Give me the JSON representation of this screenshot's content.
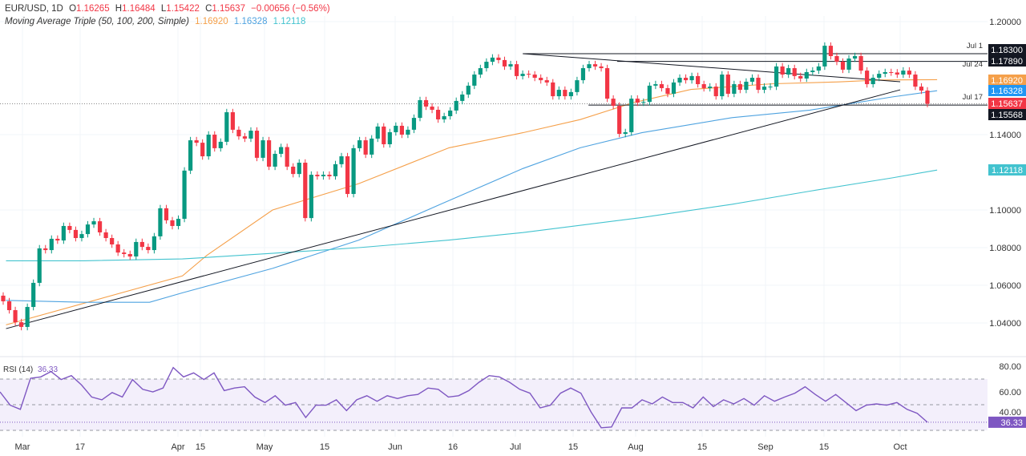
{
  "header": {
    "symbol": "EUR/USD, 1D",
    "open_label": "O",
    "open": "1.16265",
    "high_label": "H",
    "high": "1.16484",
    "low_label": "L",
    "low": "1.15422",
    "close_label": "C",
    "close": "1.15637",
    "change": "−0.00656 (−0.56%)",
    "ma_title": "Moving Average Triple (50, 100, 200, Simple)",
    "ma50": "1.16920",
    "ma100": "1.16328",
    "ma200": "1.12118"
  },
  "rsi": {
    "title": "RSI (14)",
    "value": "36.33"
  },
  "colors": {
    "up": "#089981",
    "down": "#f23645",
    "ma50": "#f5a04a",
    "ma100": "#4fa3e0",
    "ma200": "#43c3cf",
    "rsi": "#7e57c2",
    "rsi_band": "#f3effb",
    "level": "#131722"
  },
  "chart_data": [
    {
      "type": "candlestick",
      "title": "EUR/USD, 1D",
      "y_ticks": [
        "1.20000",
        "1.14000",
        "1.10000",
        "1.08000",
        "1.06000",
        "1.04000"
      ],
      "x_ticks": [
        "Mar",
        "17",
        "Apr",
        "15",
        "May",
        "15",
        "Jun",
        "16",
        "Jul",
        "15",
        "Aug",
        "15",
        "Sep",
        "15",
        "Oct"
      ],
      "ylim": [
        1.03,
        1.205
      ],
      "closes": [
        1.0515,
        1.0468,
        1.0404,
        1.0379,
        1.0485,
        1.0613,
        1.0796,
        1.0787,
        1.0847,
        1.0838,
        1.0915,
        1.0894,
        1.0851,
        1.0872,
        1.0923,
        1.094,
        1.0881,
        1.0851,
        1.0817,
        1.0774,
        1.0766,
        1.0753,
        1.083,
        1.0804,
        1.0787,
        1.086,
        1.1009,
        1.0945,
        1.0915,
        1.0953,
        1.1209,
        1.137,
        1.1357,
        1.1285,
        1.14,
        1.1328,
        1.1362,
        1.1519,
        1.1426,
        1.1391,
        1.1379,
        1.1421,
        1.1277,
        1.137,
        1.123,
        1.1298,
        1.1334,
        1.123,
        1.1191,
        1.1251,
        1.0957,
        1.1187,
        1.1179,
        1.1187,
        1.1179,
        1.1243,
        1.1285,
        1.1085,
        1.1328,
        1.137,
        1.1294,
        1.1379,
        1.1443,
        1.1349,
        1.1413,
        1.1447,
        1.14,
        1.1426,
        1.1489,
        1.1583,
        1.1549,
        1.1532,
        1.1481,
        1.1498,
        1.1528,
        1.1579,
        1.1613,
        1.166,
        1.1719,
        1.1753,
        1.1787,
        1.1809,
        1.1796,
        1.1762,
        1.1774,
        1.1711,
        1.1723,
        1.1719,
        1.1702,
        1.1689,
        1.1677,
        1.1604,
        1.1638,
        1.1604,
        1.1626,
        1.1689,
        1.1753,
        1.1774,
        1.1762,
        1.1753,
        1.1591,
        1.1553,
        1.1404,
        1.1413,
        1.1591,
        1.157,
        1.1574,
        1.166,
        1.1668,
        1.1647,
        1.1617,
        1.1677,
        1.1702,
        1.1689,
        1.1711,
        1.1668,
        1.1647,
        1.1655,
        1.1604,
        1.1719,
        1.1617,
        1.1668,
        1.1638,
        1.1681,
        1.1702,
        1.1638,
        1.1655,
        1.1655,
        1.1762,
        1.1719,
        1.1753,
        1.1711,
        1.1698,
        1.1732,
        1.174,
        1.1762,
        1.1872,
        1.1817,
        1.1787,
        1.1745,
        1.1804,
        1.1817,
        1.174,
        1.1668,
        1.1702,
        1.1723,
        1.1732,
        1.173,
        1.1719,
        1.174,
        1.1719,
        1.1655,
        1.1634,
        1.15637
      ],
      "moving_averages": [
        {
          "name": "MA 50",
          "last": "1.16920",
          "points": [
            [
              "Feb 25",
              1.039
            ],
            [
              "Apr 9",
              1.065
            ],
            [
              "Apr 15",
              1.076
            ],
            [
              "May 1",
              1.1
            ],
            [
              "May 22",
              1.114
            ],
            [
              "Jun 13",
              1.133
            ],
            [
              "Jul 1",
              1.141
            ],
            [
              "Jul 15",
              1.148
            ],
            [
              "Jul 28",
              1.157
            ],
            [
              "Aug 11",
              1.164
            ],
            [
              "Aug 31",
              1.167
            ],
            [
              "Sep 16",
              1.168
            ],
            [
              "Sep 26",
              1.169
            ],
            [
              "Oct 10",
              1.1692
            ]
          ]
        },
        {
          "name": "MA 100",
          "last": "1.16328",
          "points": [
            [
              "Feb 25",
              1.052
            ],
            [
              "Mar 16",
              1.051
            ],
            [
              "Apr 1",
              1.051
            ],
            [
              "Apr 9",
              1.056
            ],
            [
              "May 1",
              1.069
            ],
            [
              "May 22",
              1.084
            ],
            [
              "Jun 13",
              1.105
            ],
            [
              "Jul 1",
              1.122
            ],
            [
              "Jul 15",
              1.133
            ],
            [
              "Jul 30",
              1.141
            ],
            [
              "Aug 21",
              1.149
            ],
            [
              "Sep 9",
              1.153
            ],
            [
              "Sep 29",
              1.16
            ],
            [
              "Oct 10",
              1.1633
            ]
          ]
        },
        {
          "name": "MA 200",
          "last": "1.12118",
          "points": [
            [
              "Feb 25",
              1.073
            ],
            [
              "Mar 16",
              1.073
            ],
            [
              "Apr 9",
              1.074
            ],
            [
              "May 1",
              1.077
            ],
            [
              "May 22",
              1.08
            ],
            [
              "Jun 13",
              1.084
            ],
            [
              "Jul 1",
              1.088
            ],
            [
              "Jul 30",
              1.096
            ],
            [
              "Aug 21",
              1.103
            ],
            [
              "Sep 9",
              1.11
            ],
            [
              "Sep 29",
              1.117
            ],
            [
              "Oct 10",
              1.1212
            ]
          ]
        }
      ],
      "trendlines": [
        {
          "from": [
            "Feb 25",
            1.037
          ],
          "to": [
            "Oct 1",
            1.1638
          ]
        },
        {
          "from": [
            "Jul 1",
            1.183
          ],
          "to": [
            "Oct 1",
            1.1681
          ]
        }
      ],
      "levels": [
        {
          "label": "Jul 1",
          "value": "1.18300",
          "from": "Jul 1"
        },
        {
          "label": "Jul 24",
          "value": "1.17890",
          "from": "Jul 24"
        },
        {
          "label": "Jul 17",
          "value": "1.15568",
          "from": "Jul 17"
        }
      ],
      "last_price": "1.15637"
    },
    {
      "type": "line",
      "title": "RSI (14)",
      "y_ticks": [
        "80.00",
        "60.00",
        "40.00"
      ],
      "bands": [
        70,
        50,
        30
      ],
      "ylim": [
        20,
        85
      ],
      "values": [
        60,
        49.6,
        46.4,
        70.6,
        71.7,
        75.9,
        69.6,
        72.7,
        65.4,
        56,
        53.8,
        59.5,
        56,
        69.6,
        62,
        60,
        63,
        79,
        71.7,
        74.8,
        69.6,
        74.8,
        61,
        63,
        64,
        56,
        51.7,
        57,
        49.6,
        51.7,
        40,
        49.6,
        49.6,
        53.8,
        45.4,
        53.8,
        57,
        52.7,
        57,
        54.8,
        57,
        58,
        63,
        62,
        56,
        57,
        61,
        67.5,
        72.7,
        71.7,
        67.5,
        62,
        59,
        47.5,
        49.6,
        59,
        63,
        59,
        44.3,
        32,
        32.6,
        47.5,
        47.5,
        53.8,
        50.6,
        56,
        51.7,
        51.7,
        47.5,
        56,
        48.5,
        53.8,
        50.6,
        54.8,
        49.6,
        57,
        52.7,
        56,
        59,
        64,
        58,
        52.7,
        58,
        51.7,
        45.4,
        49.6,
        50.6,
        49.6,
        51.7,
        46.4,
        43.3,
        36.33
      ],
      "last": "36.33"
    }
  ]
}
